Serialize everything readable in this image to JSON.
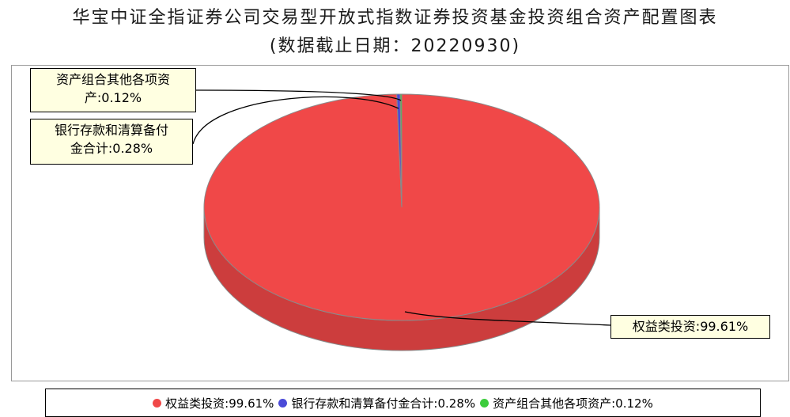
{
  "chart_data": {
    "type": "pie",
    "title": "华宝中证全指证券公司交易型开放式指数证券投资基金投资组合资产配置图表",
    "subtitle": "(数据截止日期：20220930)",
    "slices": [
      {
        "label": "权益类投资",
        "value": 99.61,
        "display": "权益类投资:99.61%",
        "color": "#f04848"
      },
      {
        "label": "银行存款和清算备付金合计",
        "value": 0.28,
        "display": "银行存款和清算备付金合计:0.28%",
        "color": "#4a4ad8"
      },
      {
        "label": "资产组合其他各项资产",
        "value": 0.12,
        "display": "资产组合其他各项资产:0.12%",
        "color": "#3ccc3c"
      }
    ],
    "callouts": {
      "other_line1": "资产组合其他各项资",
      "other_line2": "产:0.12%",
      "bank_line1": "银行存款和清算备付",
      "bank_line2": "金合计:0.28%",
      "equity": "权益类投资:99.61%"
    },
    "legend_position": "bottom"
  }
}
